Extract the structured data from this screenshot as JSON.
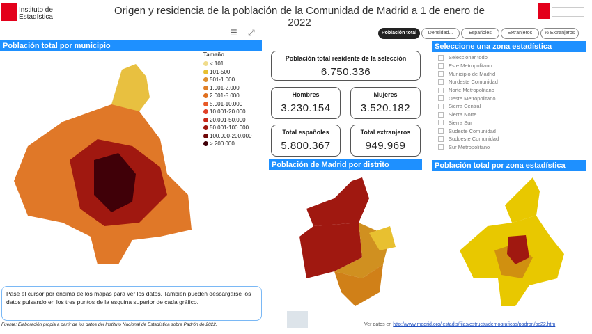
{
  "header": {
    "title": "Origen y residencia de la población de la Comunidad de Madrid a 1 de enero de 2022",
    "logo_ine": "Instituto de Estadística",
    "logo_cam": "Comunidad de Madrid"
  },
  "tabs": [
    {
      "label": "Población total",
      "active": true
    },
    {
      "label": "Densidad..."
    },
    {
      "label": "Españoles"
    },
    {
      "label": "Extranjeros"
    },
    {
      "label": "% Extranjeros"
    }
  ],
  "municipio": {
    "title": "Población total por municipio",
    "legend_title": "Tamaño",
    "legend": [
      {
        "label": "< 101",
        "color": "#f0dc8c"
      },
      {
        "label": "101-500",
        "color": "#e8c030"
      },
      {
        "label": "501-1.000",
        "color": "#e09030"
      },
      {
        "label": "1.001-2.000",
        "color": "#e08028"
      },
      {
        "label": "2.001-5.000",
        "color": "#e07020"
      },
      {
        "label": "5.001-10.000",
        "color": "#e85a28"
      },
      {
        "label": "10.001-20.000",
        "color": "#e04028"
      },
      {
        "label": "20.001-50.000",
        "color": "#c82818"
      },
      {
        "label": "50.001-100.000",
        "color": "#a01810"
      },
      {
        "label": "100.000-200.000",
        "color": "#700808"
      },
      {
        "label": "> 200.000",
        "color": "#400008"
      }
    ]
  },
  "kpis": {
    "total_label": "Población total residente de la selección",
    "total": "6.750.336",
    "hombres_label": "Hombres",
    "hombres": "3.230.154",
    "mujeres_label": "Mujeres",
    "mujeres": "3.520.182",
    "espanoles_label": "Total españoles",
    "espanoles": "5.800.367",
    "extranjeros_label": "Total extranjeros",
    "extranjeros": "949.969"
  },
  "distrito": {
    "title": "Población de Madrid por distrito"
  },
  "zona": {
    "title": "Seleccione una zona estadística",
    "items": [
      "Seleccionar todo",
      "Este Metropolitano",
      "Municipio de Madrid",
      "Nordeste Comunidad",
      "Norte Metropolitano",
      "Oeste Metropolitano",
      "Sierra Central",
      "Sierra Norte",
      "Sierra Sur",
      "Sudeste Comunidad",
      "Sudoeste Comunidad",
      "Sur Metropolitano"
    ]
  },
  "zona_map": {
    "title": "Población total por zona estadística"
  },
  "note": "Pase el cursor por encima de los mapas para ver los datos. También pueden descargarse los datos pulsando en los tres puntos de la esquina superior de cada gráfico.",
  "footer": {
    "source": "Fuente: Elaboración propia a partir de los datos del Instituto Nacional de Estadística sobre Padrón de 2022.",
    "ver_datos": "Ver datos en",
    "link": "http://www.madrid.org/iestadis/fijas/estructu/demograficas/padron/pc22.htm"
  },
  "icons": {
    "filter": "filter-icon",
    "expand": "focus-mode-icon"
  }
}
